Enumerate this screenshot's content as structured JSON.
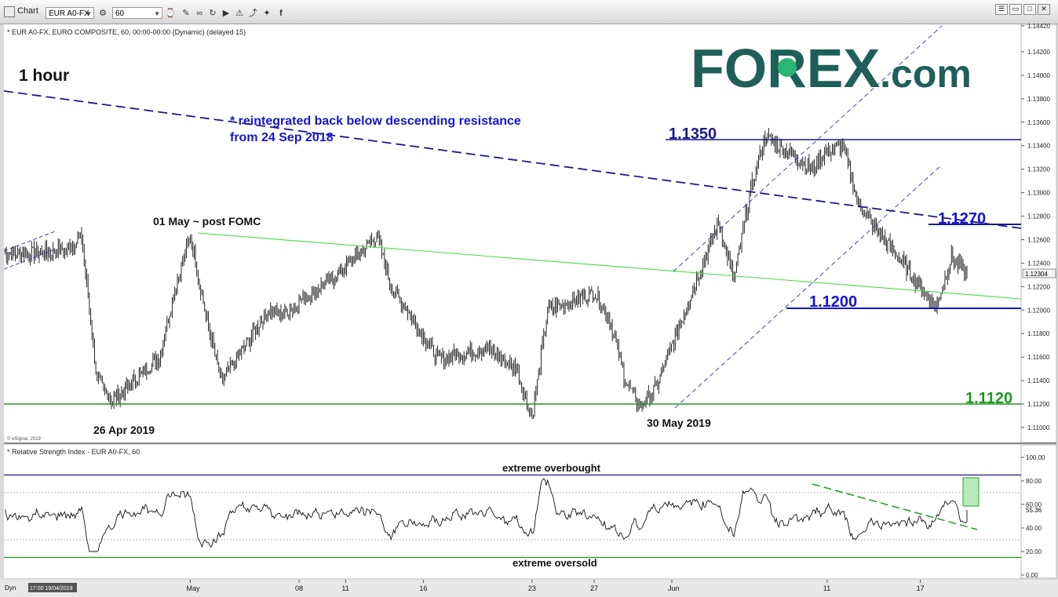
{
  "toolbar": {
    "app_label": "Chart",
    "symbol_value": "EUR A0-FX",
    "interval_value": "60",
    "icons": [
      "pencil-icon",
      "link-icon",
      "refresh-icon",
      "play-icon",
      "alert-icon",
      "share-icon",
      "twitter-icon",
      "facebook-icon"
    ],
    "window_buttons": [
      "list",
      "restore",
      "maximize",
      "close"
    ]
  },
  "price_panel": {
    "header": "* EUR A0-FX, EURO COMPOSITE, 60, 00:00-00:00 (Dynamic) (delayed 15)",
    "timeframe_label": "1 hour",
    "copyright": "© eSignal, 2019",
    "brand_logo": "FOREX.com",
    "last_price_label": "1.12304",
    "y_ticks": [
      "1.14420",
      "1.14200",
      "1.14000",
      "1.13800",
      "1.13600",
      "1.13400",
      "1.13200",
      "1.13000",
      "1.12800",
      "1.12600",
      "1.12400",
      "1.12200",
      "1.12000",
      "1.11800",
      "1.11600",
      "1.11400",
      "1.11200",
      "1.11000"
    ],
    "levels": {
      "l1": "1.1350",
      "l2": "1.1270",
      "l3": "1.1200",
      "l4": "1.1120"
    },
    "annotations": {
      "resistance_line1": "* reintegrated back below descending resistance",
      "resistance_line2": "from 24 Sep 2018",
      "post_fomc": "01 May ~ post FOMC",
      "low_apr": "26 Apr 2019",
      "low_may": "30 May 2019"
    }
  },
  "rsi_panel": {
    "header": "* Relative Strength Index - EUR A0-FX, 60",
    "y_ticks": [
      "100.00",
      "80.00",
      "60.00",
      "40.00",
      "20.00",
      "0.00"
    ],
    "last_value_label": "55.36",
    "overbought_label": "extreme overbought",
    "oversold_label": "extreme oversold"
  },
  "x_axis": {
    "start_label": "Dyn",
    "date_label": "17:00 19/04/2019",
    "ticks": [
      "May",
      "08",
      "11",
      "16",
      "23",
      "27",
      "Jun",
      "11",
      "17"
    ]
  },
  "colors": {
    "navy": "#1a1a8c",
    "blue": "#1515d0",
    "green": "#1f9a1f",
    "light_green": "#44dd44",
    "brand_teal": "#1f5f5a",
    "brand_green": "#2bb673"
  },
  "chart_data": {
    "type": "candlestick",
    "timeframe": "1 hour",
    "x_range": [
      "2019-04-19",
      "2019-06-20"
    ],
    "ylim": [
      1.11,
      1.1442
    ],
    "price_path": [
      [
        "2019-04-19",
        1.1248
      ],
      [
        "2019-04-22",
        1.1249
      ],
      [
        "2019-04-23",
        1.1252
      ],
      [
        "2019-04-24",
        1.1262
      ],
      [
        "2019-04-25",
        1.114
      ],
      [
        "2019-04-26",
        1.1123
      ],
      [
        "2019-04-29",
        1.116
      ],
      [
        "2019-04-30",
        1.1218
      ],
      [
        "2019-05-01",
        1.1264
      ],
      [
        "2019-05-02",
        1.1195
      ],
      [
        "2019-05-03",
        1.1138
      ],
      [
        "2019-05-06",
        1.12
      ],
      [
        "2019-05-07",
        1.1196
      ],
      [
        "2019-05-08",
        1.1208
      ],
      [
        "2019-05-09",
        1.1216
      ],
      [
        "2019-05-10",
        1.1225
      ],
      [
        "2019-05-13",
        1.1263
      ],
      [
        "2019-05-14",
        1.1218
      ],
      [
        "2019-05-15",
        1.12
      ],
      [
        "2019-05-16",
        1.1178
      ],
      [
        "2019-05-17",
        1.1158
      ],
      [
        "2019-05-20",
        1.1168
      ],
      [
        "2019-05-21",
        1.1158
      ],
      [
        "2019-05-22",
        1.115
      ],
      [
        "2019-05-23",
        1.1108
      ],
      [
        "2019-05-24",
        1.12
      ],
      [
        "2019-05-27",
        1.1215
      ],
      [
        "2019-05-28",
        1.1192
      ],
      [
        "2019-05-29",
        1.114
      ],
      [
        "2019-05-30",
        1.1117
      ],
      [
        "2019-05-31",
        1.1135
      ],
      [
        "2019-06-03",
        1.124
      ],
      [
        "2019-06-04",
        1.1275
      ],
      [
        "2019-06-05",
        1.1225
      ],
      [
        "2019-06-06",
        1.1298
      ],
      [
        "2019-06-07",
        1.1348
      ],
      [
        "2019-06-10",
        1.132
      ],
      [
        "2019-06-11",
        1.1335
      ],
      [
        "2019-06-12",
        1.134
      ],
      [
        "2019-06-13",
        1.129
      ],
      [
        "2019-06-14",
        1.1272
      ],
      [
        "2019-06-17",
        1.122
      ],
      [
        "2019-06-18",
        1.1202
      ],
      [
        "2019-06-19",
        1.1245
      ],
      [
        "2019-06-20",
        1.123
      ]
    ],
    "horizontal_levels": [
      {
        "value": 1.135,
        "label": "1.1350"
      },
      {
        "value": 1.127,
        "label": "1.1270"
      },
      {
        "value": 1.12,
        "label": "1.1200"
      },
      {
        "value": 1.112,
        "label": "1.1120"
      }
    ],
    "last_price": 1.12304,
    "rsi": {
      "period_label": "Relative Strength Index - EUR A0-FX, 60",
      "ylim": [
        0,
        100
      ],
      "overbought": 85,
      "oversold": 15,
      "last": 55.36
    }
  }
}
